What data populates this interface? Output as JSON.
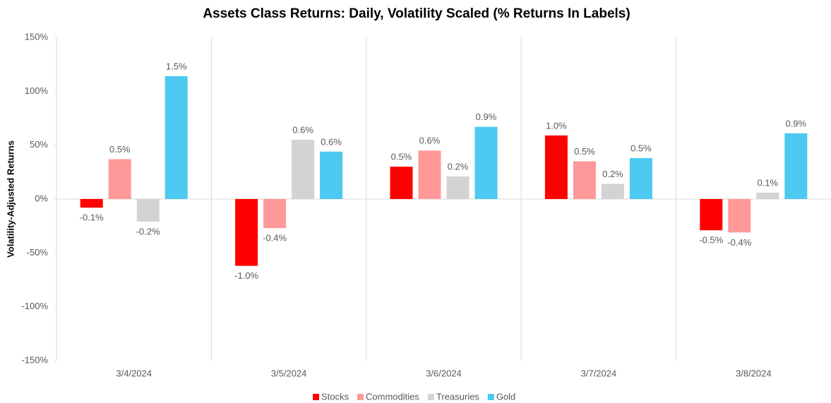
{
  "chart_data": {
    "type": "bar",
    "title": "Assets Class Returns: Daily, Volatility Scaled (% Returns In Labels)",
    "y_label": "Volatility-Adjusted Returns",
    "categories": [
      "3/4/2024",
      "3/5/2024",
      "3/6/2024",
      "3/7/2024",
      "3/8/2024"
    ],
    "series": [
      {
        "name": "Stocks",
        "color": "#ff0000",
        "values": [
          -8,
          -62,
          30,
          59,
          -29
        ],
        "labels": [
          "-0.1%",
          "-1.0%",
          "0.5%",
          "1.0%",
          "-0.5%"
        ]
      },
      {
        "name": "Commodities",
        "color": "#ff9999",
        "values": [
          37,
          -27,
          45,
          35,
          -31
        ],
        "labels": [
          "0.5%",
          "-0.4%",
          "0.6%",
          "0.5%",
          "-0.4%"
        ]
      },
      {
        "name": "Treasuries",
        "color": "#d3d3d3",
        "values": [
          -21,
          55,
          21,
          14,
          6
        ],
        "labels": [
          "-0.2%",
          "0.6%",
          "0.2%",
          "0.2%",
          "0.1%"
        ]
      },
      {
        "name": "Gold",
        "color": "#4cc9f0",
        "values": [
          114,
          44,
          67,
          38,
          61
        ],
        "labels": [
          "1.5%",
          "0.6%",
          "0.9%",
          "0.5%",
          "0.9%"
        ]
      }
    ],
    "ylim": [
      -150,
      150
    ],
    "yticks": [
      {
        "value": -150,
        "label": "-150%"
      },
      {
        "value": -100,
        "label": "-100%"
      },
      {
        "value": -50,
        "label": "-50%"
      },
      {
        "value": 0,
        "label": "0%"
      },
      {
        "value": 50,
        "label": "50%"
      },
      {
        "value": 100,
        "label": "100%"
      },
      {
        "value": 150,
        "label": "150%"
      }
    ],
    "grid": false
  }
}
